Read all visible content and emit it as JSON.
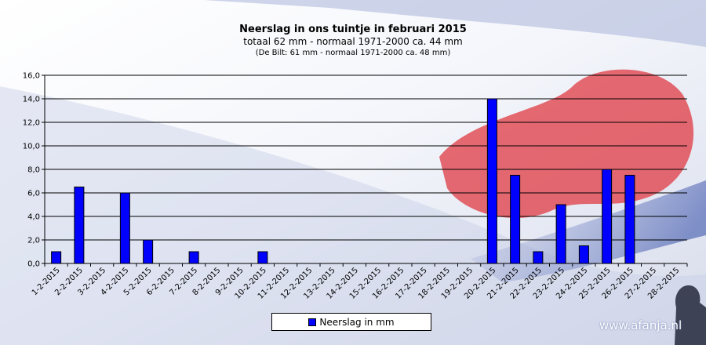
{
  "chart_data": {
    "type": "bar",
    "title": "Neerslag  in ons tuintje in februari  2015",
    "subtitle": "totaal 62 mm  - normaal  1971-2000  ca. 44 mm",
    "note": "(De Bilt: 61 mm - normaal 1971-2000 ca. 48 mm)",
    "categories": [
      "1-2-2015",
      "2-2-2015",
      "3-2-2015",
      "4-2-2015",
      "5-2-2015",
      "6-2-2015",
      "7-2-2015",
      "8-2-2015",
      "9-2-2015",
      "10-2-2015",
      "11-2-2015",
      "12-2-2015",
      "13-2-2015",
      "14-2-2015",
      "15-2-2015",
      "16-2-2015",
      "17-2-2015",
      "18-2-2015",
      "19-2-2015",
      "20-2-2015",
      "21-2-2015",
      "22-2-2015",
      "23-2-2015",
      "24-2-2015",
      "25-2-2015",
      "26-2-2015",
      "27-2-2015",
      "28-2-2015"
    ],
    "series": [
      {
        "name": "Neerslag in mm",
        "values": [
          1.0,
          6.5,
          0,
          6.0,
          2.0,
          0,
          1.0,
          0,
          0,
          1.0,
          0,
          0,
          0,
          0,
          0,
          0,
          0,
          0,
          0,
          14.0,
          7.5,
          1.0,
          5.0,
          1.5,
          8.0,
          7.5,
          0,
          0
        ]
      }
    ],
    "yticks": [
      "0,0",
      "2,0",
      "4,0",
      "6,0",
      "8,0",
      "10,0",
      "12,0",
      "14,0",
      "16,0"
    ],
    "ylim": [
      0,
      16
    ],
    "grid": true,
    "legend_position": "bottom-center",
    "bar_color": "#0000ff"
  },
  "watermark": "www.afanja.nl"
}
